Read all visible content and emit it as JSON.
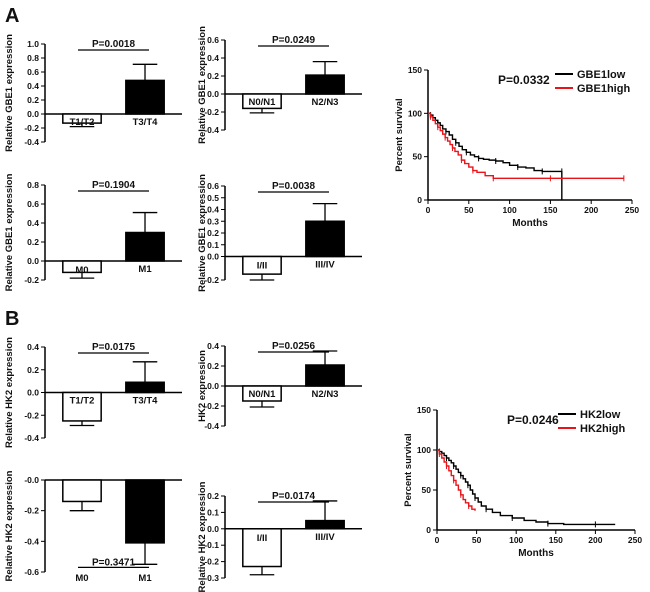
{
  "panels": {
    "a": "A",
    "b": "B"
  },
  "colors": {
    "bar_fill": "#000000",
    "bar_outline": "#000000",
    "empty_fill": "#ffffff",
    "low_line": "#000000",
    "high_line": "#e8141a"
  },
  "chart_data": [
    {
      "type": "bar",
      "id": "a-t",
      "ylabel": "Relative GBE1 expression",
      "categories": [
        "T1/T2",
        "T3/T4"
      ],
      "values": [
        -0.13,
        0.48
      ],
      "errors": [
        0.05,
        0.23
      ],
      "filled": [
        false,
        true
      ],
      "ylim": [
        -0.4,
        1.0
      ],
      "yticks": [
        "-0.4",
        "-0.2",
        "0.0",
        "0.2",
        "0.4",
        "0.6",
        "0.8",
        "1.0"
      ],
      "p_text": "P=0.0018"
    },
    {
      "type": "bar",
      "id": "a-n",
      "ylabel": "Relative GBE1 expression",
      "categories": [
        "N0/N1",
        "N2/N3"
      ],
      "values": [
        -0.16,
        0.21
      ],
      "errors": [
        0.05,
        0.15
      ],
      "filled": [
        false,
        true
      ],
      "ylim": [
        -0.4,
        0.6
      ],
      "yticks": [
        "-0.4",
        "-0.2",
        "0.0",
        "0.2",
        "0.4",
        "0.6"
      ],
      "p_text": "P=0.0249"
    },
    {
      "type": "bar",
      "id": "a-m",
      "ylabel": "Relative GBE1 expression",
      "categories": [
        "M0",
        "M1"
      ],
      "values": [
        -0.12,
        0.3
      ],
      "errors": [
        0.06,
        0.21
      ],
      "filled": [
        false,
        true
      ],
      "ylim": [
        -0.2,
        0.8
      ],
      "yticks": [
        "-0.2",
        "0.0",
        "0.2",
        "0.4",
        "0.6",
        "0.8"
      ],
      "p_text": "P=0.1904"
    },
    {
      "type": "bar",
      "id": "a-s",
      "ylabel": "Relative GBE1 expression",
      "categories": [
        "I/II",
        "III/IV"
      ],
      "values": [
        -0.15,
        0.3
      ],
      "errors": [
        0.05,
        0.15
      ],
      "filled": [
        false,
        true
      ],
      "ylim": [
        -0.2,
        0.6
      ],
      "yticks": [
        "-0.2",
        "0.0",
        "0.1",
        "0.2",
        "0.3",
        "0.4",
        "0.5",
        "0.6"
      ],
      "p_text": "P=0.0038"
    },
    {
      "type": "line",
      "id": "a-km",
      "ylabel": "Percent survival",
      "xlabel": "Months",
      "xticks": [
        "0",
        "50",
        "100",
        "150",
        "200",
        "250"
      ],
      "yticks": [
        "0",
        "50",
        "100",
        "150"
      ],
      "xlim": [
        0,
        250
      ],
      "ylim": [
        0,
        150
      ],
      "p_text": "P=0.0332",
      "series": [
        {
          "name": "GBE1low",
          "x": [
            0,
            3,
            6,
            9,
            12,
            15,
            18,
            22,
            26,
            30,
            34,
            38,
            42,
            47,
            52,
            57,
            62,
            68,
            75,
            83,
            92,
            100,
            110,
            120,
            130,
            140,
            150,
            160,
            164,
            164
          ],
          "y": [
            100,
            98,
            95,
            92,
            89,
            86,
            82,
            79,
            75,
            70,
            66,
            62,
            58,
            55,
            52,
            50,
            48,
            47,
            46,
            45,
            43,
            40,
            38,
            37,
            34,
            33,
            33,
            33,
            33,
            0
          ]
        },
        {
          "name": "GBE1high",
          "x": [
            0,
            3,
            6,
            9,
            12,
            15,
            18,
            21,
            24,
            27,
            30,
            33,
            37,
            41,
            45,
            50,
            55,
            60,
            70,
            80,
            100,
            120,
            150,
            180,
            210,
            240
          ],
          "y": [
            100,
            96,
            92,
            88,
            84,
            80,
            76,
            72,
            68,
            64,
            60,
            56,
            52,
            46,
            42,
            38,
            34,
            32,
            28,
            25,
            25,
            25,
            25,
            25,
            25,
            25
          ]
        }
      ]
    },
    {
      "type": "bar",
      "id": "b-t",
      "ylabel": "Relative HK2 expression",
      "categories": [
        "T1/T2",
        "T3/T4"
      ],
      "values": [
        -0.25,
        0.09
      ],
      "errors": [
        0.04,
        0.18
      ],
      "filled": [
        false,
        true
      ],
      "ylim": [
        -0.4,
        0.4
      ],
      "yticks": [
        "-0.4",
        "-0.2",
        "0.0",
        "0.2",
        "0.4"
      ],
      "p_text": "P=0.0175"
    },
    {
      "type": "bar",
      "id": "b-n",
      "ylabel": "HK2 expression",
      "categories": [
        "N0/N1",
        "N2/N3"
      ],
      "values": [
        -0.15,
        0.21
      ],
      "errors": [
        0.06,
        0.14
      ],
      "filled": [
        false,
        true
      ],
      "ylim": [
        -0.4,
        0.4
      ],
      "yticks": [
        "-0.4",
        "-0.2",
        "0.0",
        "0.2",
        "0.4"
      ],
      "p_text": "P=0.0256"
    },
    {
      "type": "bar",
      "id": "b-m",
      "ylabel": "Relative HK2 expression",
      "categories": [
        "M0",
        "M1"
      ],
      "values": [
        -0.14,
        -0.41
      ],
      "errors": [
        0.06,
        0.14
      ],
      "filled": [
        false,
        true
      ],
      "ylim": [
        -0.6,
        0.0
      ],
      "yticks": [
        "-0.6",
        "-0.4",
        "-0.2",
        "-0.0"
      ],
      "p_text": "P=0.3471"
    },
    {
      "type": "bar",
      "id": "b-s",
      "ylabel": "Relative HK2 expression",
      "categories": [
        "I/II",
        "III/IV"
      ],
      "values": [
        -0.23,
        0.05
      ],
      "errors": [
        0.05,
        0.12
      ],
      "filled": [
        false,
        true
      ],
      "ylim": [
        -0.3,
        0.2
      ],
      "yticks": [
        "-0.3",
        "-0.2",
        "-0.1",
        "0.0",
        "0.1",
        "0.2"
      ],
      "p_text": "P=0.0174"
    },
    {
      "type": "line",
      "id": "b-km",
      "ylabel": "Percent survival",
      "xlabel": "Months",
      "xticks": [
        "0",
        "50",
        "100",
        "150",
        "200",
        "250"
      ],
      "yticks": [
        "0",
        "50",
        "100",
        "150"
      ],
      "xlim": [
        0,
        250
      ],
      "ylim": [
        0,
        150
      ],
      "p_text": "P=0.0246",
      "series": [
        {
          "name": "HK2low",
          "x": [
            0,
            3,
            6,
            9,
            12,
            15,
            18,
            21,
            24,
            27,
            30,
            33,
            36,
            39,
            42,
            45,
            48,
            52,
            56,
            62,
            70,
            80,
            95,
            110,
            125,
            140,
            160,
            180,
            200,
            225
          ],
          "y": [
            100,
            98,
            96,
            93,
            90,
            87,
            84,
            80,
            76,
            72,
            68,
            64,
            60,
            56,
            50,
            45,
            40,
            35,
            30,
            26,
            22,
            18,
            15,
            12,
            10,
            8,
            7,
            7,
            7,
            7
          ]
        },
        {
          "name": "HK2high",
          "x": [
            0,
            3,
            6,
            9,
            12,
            15,
            18,
            21,
            24,
            27,
            30,
            33,
            36,
            40,
            44,
            48
          ],
          "y": [
            100,
            95,
            90,
            85,
            80,
            74,
            68,
            62,
            56,
            50,
            44,
            38,
            34,
            30,
            26,
            24
          ]
        }
      ]
    }
  ]
}
